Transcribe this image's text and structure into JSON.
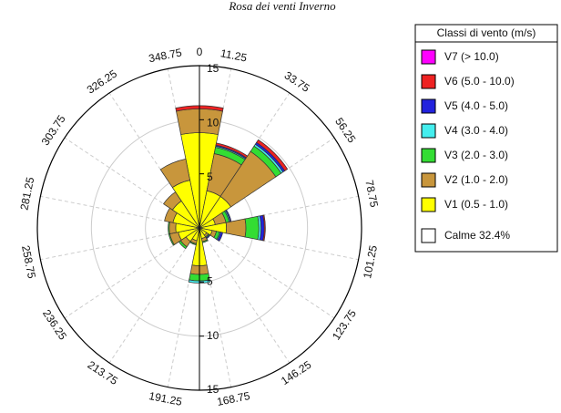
{
  "chart_data": {
    "type": "windrose",
    "title": "Rosa dei venti Inverno",
    "x": [
      0,
      22.5,
      45,
      67.5,
      90,
      112.5,
      135,
      157.5,
      180,
      202.5,
      225,
      247.5,
      270,
      292.5,
      315,
      337.5
    ],
    "series": [
      {
        "name": "V1 (0.5 - 1.0)",
        "color": "#ffff00",
        "values": [
          8.8,
          3.5,
          3.5,
          1.5,
          2.5,
          1.2,
          0.8,
          1.0,
          3.5,
          1.2,
          1.5,
          2.0,
          2.2,
          2.5,
          3.0,
          4.5
        ]
      },
      {
        "name": "V2 (1.0 - 2.0)",
        "color": "#c8963c",
        "values": [
          2.2,
          3.5,
          5.0,
          1.0,
          1.8,
          0.4,
          0.2,
          0.3,
          0.8,
          0.3,
          0.6,
          0.8,
          0.6,
          0.8,
          1.0,
          2.0
        ]
      },
      {
        "name": "V3 (2.0 - 3.0)",
        "color": "#33dd33",
        "values": [
          0,
          0.6,
          0.6,
          0.3,
          1.2,
          0.3,
          0.1,
          0.1,
          0.6,
          0.1,
          0.2,
          0.1,
          0.1,
          0,
          0,
          0
        ]
      },
      {
        "name": "V4 (3.0 - 4.0)",
        "color": "#44eeee",
        "values": [
          0,
          0.1,
          0.2,
          0.1,
          0.2,
          0.1,
          0,
          0,
          0.2,
          0,
          0,
          0,
          0,
          0,
          0,
          0
        ]
      },
      {
        "name": "V5 (4.0 - 5.0)",
        "color": "#2222dd",
        "values": [
          0,
          0.1,
          0.2,
          0.1,
          0.3,
          0.2,
          0.1,
          0,
          0,
          0,
          0,
          0,
          0,
          0,
          0,
          0
        ]
      },
      {
        "name": "V6 (5.0 - 10.0)",
        "color": "#ee2222",
        "values": [
          0.3,
          0.2,
          0.3,
          0,
          0.1,
          0,
          0,
          0,
          0,
          0,
          0,
          0,
          0,
          0,
          0,
          0
        ]
      },
      {
        "name": "V7 (> 10.0)",
        "color": "#ff00ff",
        "values": [
          0,
          0,
          0,
          0,
          0,
          0,
          0,
          0,
          0,
          0,
          0,
          0,
          0,
          0,
          0,
          0
        ]
      }
    ],
    "calm_label": "Calme 32.4%",
    "legend_title": "Classi di vento (m/s)",
    "ylim": [
      0,
      15
    ],
    "yticks": [
      5,
      10,
      15
    ],
    "angle_labels": [
      0,
      11.25,
      33.75,
      56.25,
      78.75,
      101.25,
      123.75,
      146.25,
      168.75,
      191.25,
      213.75,
      236.25,
      258.75,
      281.25,
      303.75,
      326.25,
      348.75
    ],
    "grid": true
  }
}
